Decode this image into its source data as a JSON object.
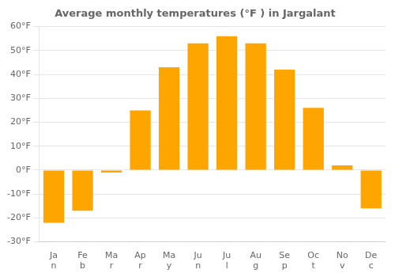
{
  "chart_data": {
    "type": "bar",
    "title": "Average monthly temperatures (°F ) in Jargalant",
    "categories": [
      "Ja\nn",
      "Fe\nb",
      "Ma\nr",
      "Ap\nr",
      "Ma\ny",
      "Ju\nn",
      "Ju\nl",
      "Au\ng",
      "Se\np",
      "Oc\nt",
      "No\nv",
      "De\nc"
    ],
    "values": [
      -22,
      -17,
      -1,
      25,
      43,
      53,
      56,
      53,
      42,
      26,
      2,
      -16
    ],
    "color": "#FFA500",
    "ylim": [
      -30,
      60
    ],
    "yticks": [
      {
        "value": -30,
        "label": "-30°F"
      },
      {
        "value": -20,
        "label": "-20°F"
      },
      {
        "value": -10,
        "label": "-10°F"
      },
      {
        "value": 0,
        "label": "0°F"
      },
      {
        "value": 10,
        "label": "10°F"
      },
      {
        "value": 20,
        "label": "20°F"
      },
      {
        "value": 30,
        "label": "30°F"
      },
      {
        "value": 40,
        "label": "40°F"
      },
      {
        "value": 50,
        "label": "50°F"
      },
      {
        "value": 60,
        "label": "60°F"
      }
    ],
    "grid": true
  }
}
